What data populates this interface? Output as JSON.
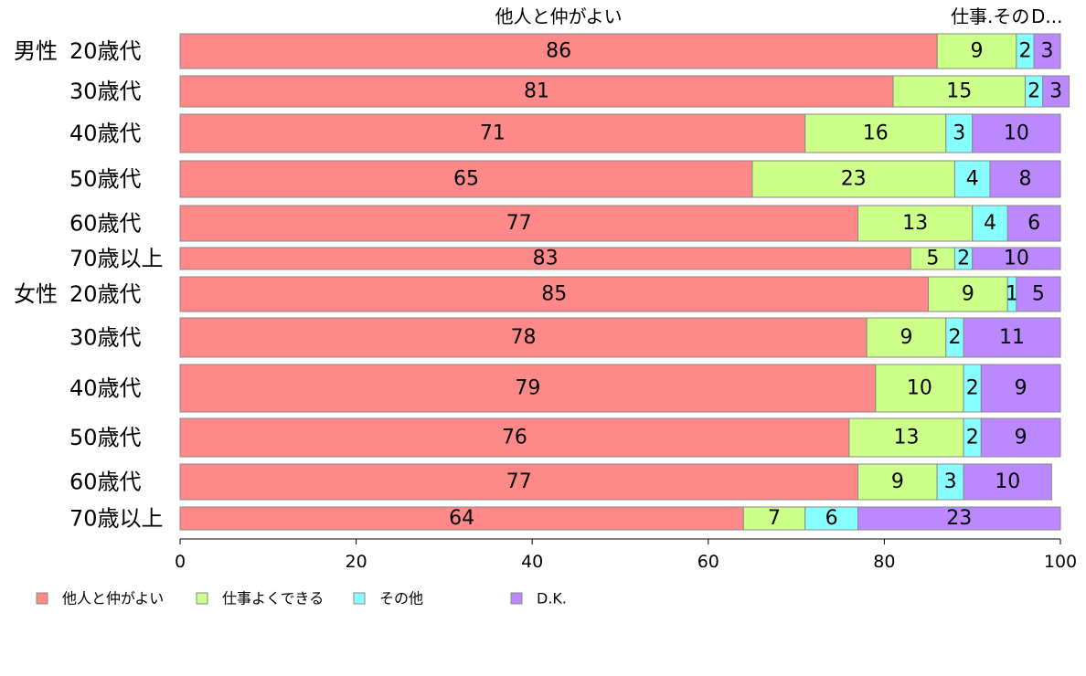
{
  "chart_data": {
    "type": "bar",
    "orientation": "horizontal",
    "stacked": true,
    "groups": [
      "男性",
      "女性"
    ],
    "categories": [
      "20歳代",
      "30歳代",
      "40歳代",
      "50歳代",
      "60歳代",
      "70歳以上",
      "20歳代",
      "30歳代",
      "40歳代",
      "50歳代",
      "60歳代",
      "70歳以上"
    ],
    "category_group": [
      0,
      0,
      0,
      0,
      0,
      0,
      1,
      1,
      1,
      1,
      1,
      1
    ],
    "series": [
      {
        "name": "他人と仲がよい",
        "color": "#ff8888",
        "values": [
          86,
          81,
          71,
          65,
          77,
          83,
          85,
          78,
          79,
          76,
          77,
          64
        ]
      },
      {
        "name": "仕事よくできる",
        "color": "#ccff88",
        "values": [
          9,
          15,
          16,
          23,
          13,
          5,
          9,
          9,
          10,
          13,
          9,
          7
        ]
      },
      {
        "name": "その他",
        "color": "#88ffff",
        "values": [
          2,
          2,
          3,
          4,
          4,
          2,
          1,
          2,
          2,
          2,
          3,
          6
        ]
      },
      {
        "name": "D.K.",
        "color": "#bb88ff",
        "values": [
          3,
          3,
          10,
          8,
          6,
          10,
          5,
          11,
          9,
          9,
          10,
          23
        ]
      }
    ],
    "top_labels": [
      "他人と仲がよい",
      "仕事.その",
      "D..."
    ],
    "xlim": [
      0,
      100
    ],
    "xticks": [
      0,
      20,
      40,
      60,
      80,
      100
    ],
    "legend_position": "bottom",
    "grid": false
  }
}
